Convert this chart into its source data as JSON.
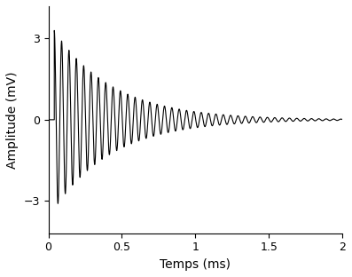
{
  "xlabel": "Temps (ms)",
  "ylabel": "Amplitude (mV)",
  "xlim": [
    0,
    2
  ],
  "ylim": [
    -4.2,
    4.2
  ],
  "yticks": [
    -3,
    0,
    3
  ],
  "xticks": [
    0,
    0.5,
    1,
    1.5,
    2
  ],
  "xticklabels": [
    "0",
    "0.5",
    "1",
    "1.5",
    "2"
  ],
  "signal_params": {
    "t_start": 0.04,
    "frequency_khz": 20,
    "decay_rate": 2.5,
    "amplitude": 3.3,
    "phase": 1.5707963
  },
  "line_color": "#000000",
  "line_width": 0.8,
  "background_color": "#ffffff",
  "figsize": [
    3.97,
    3.12
  ],
  "dpi": 100
}
